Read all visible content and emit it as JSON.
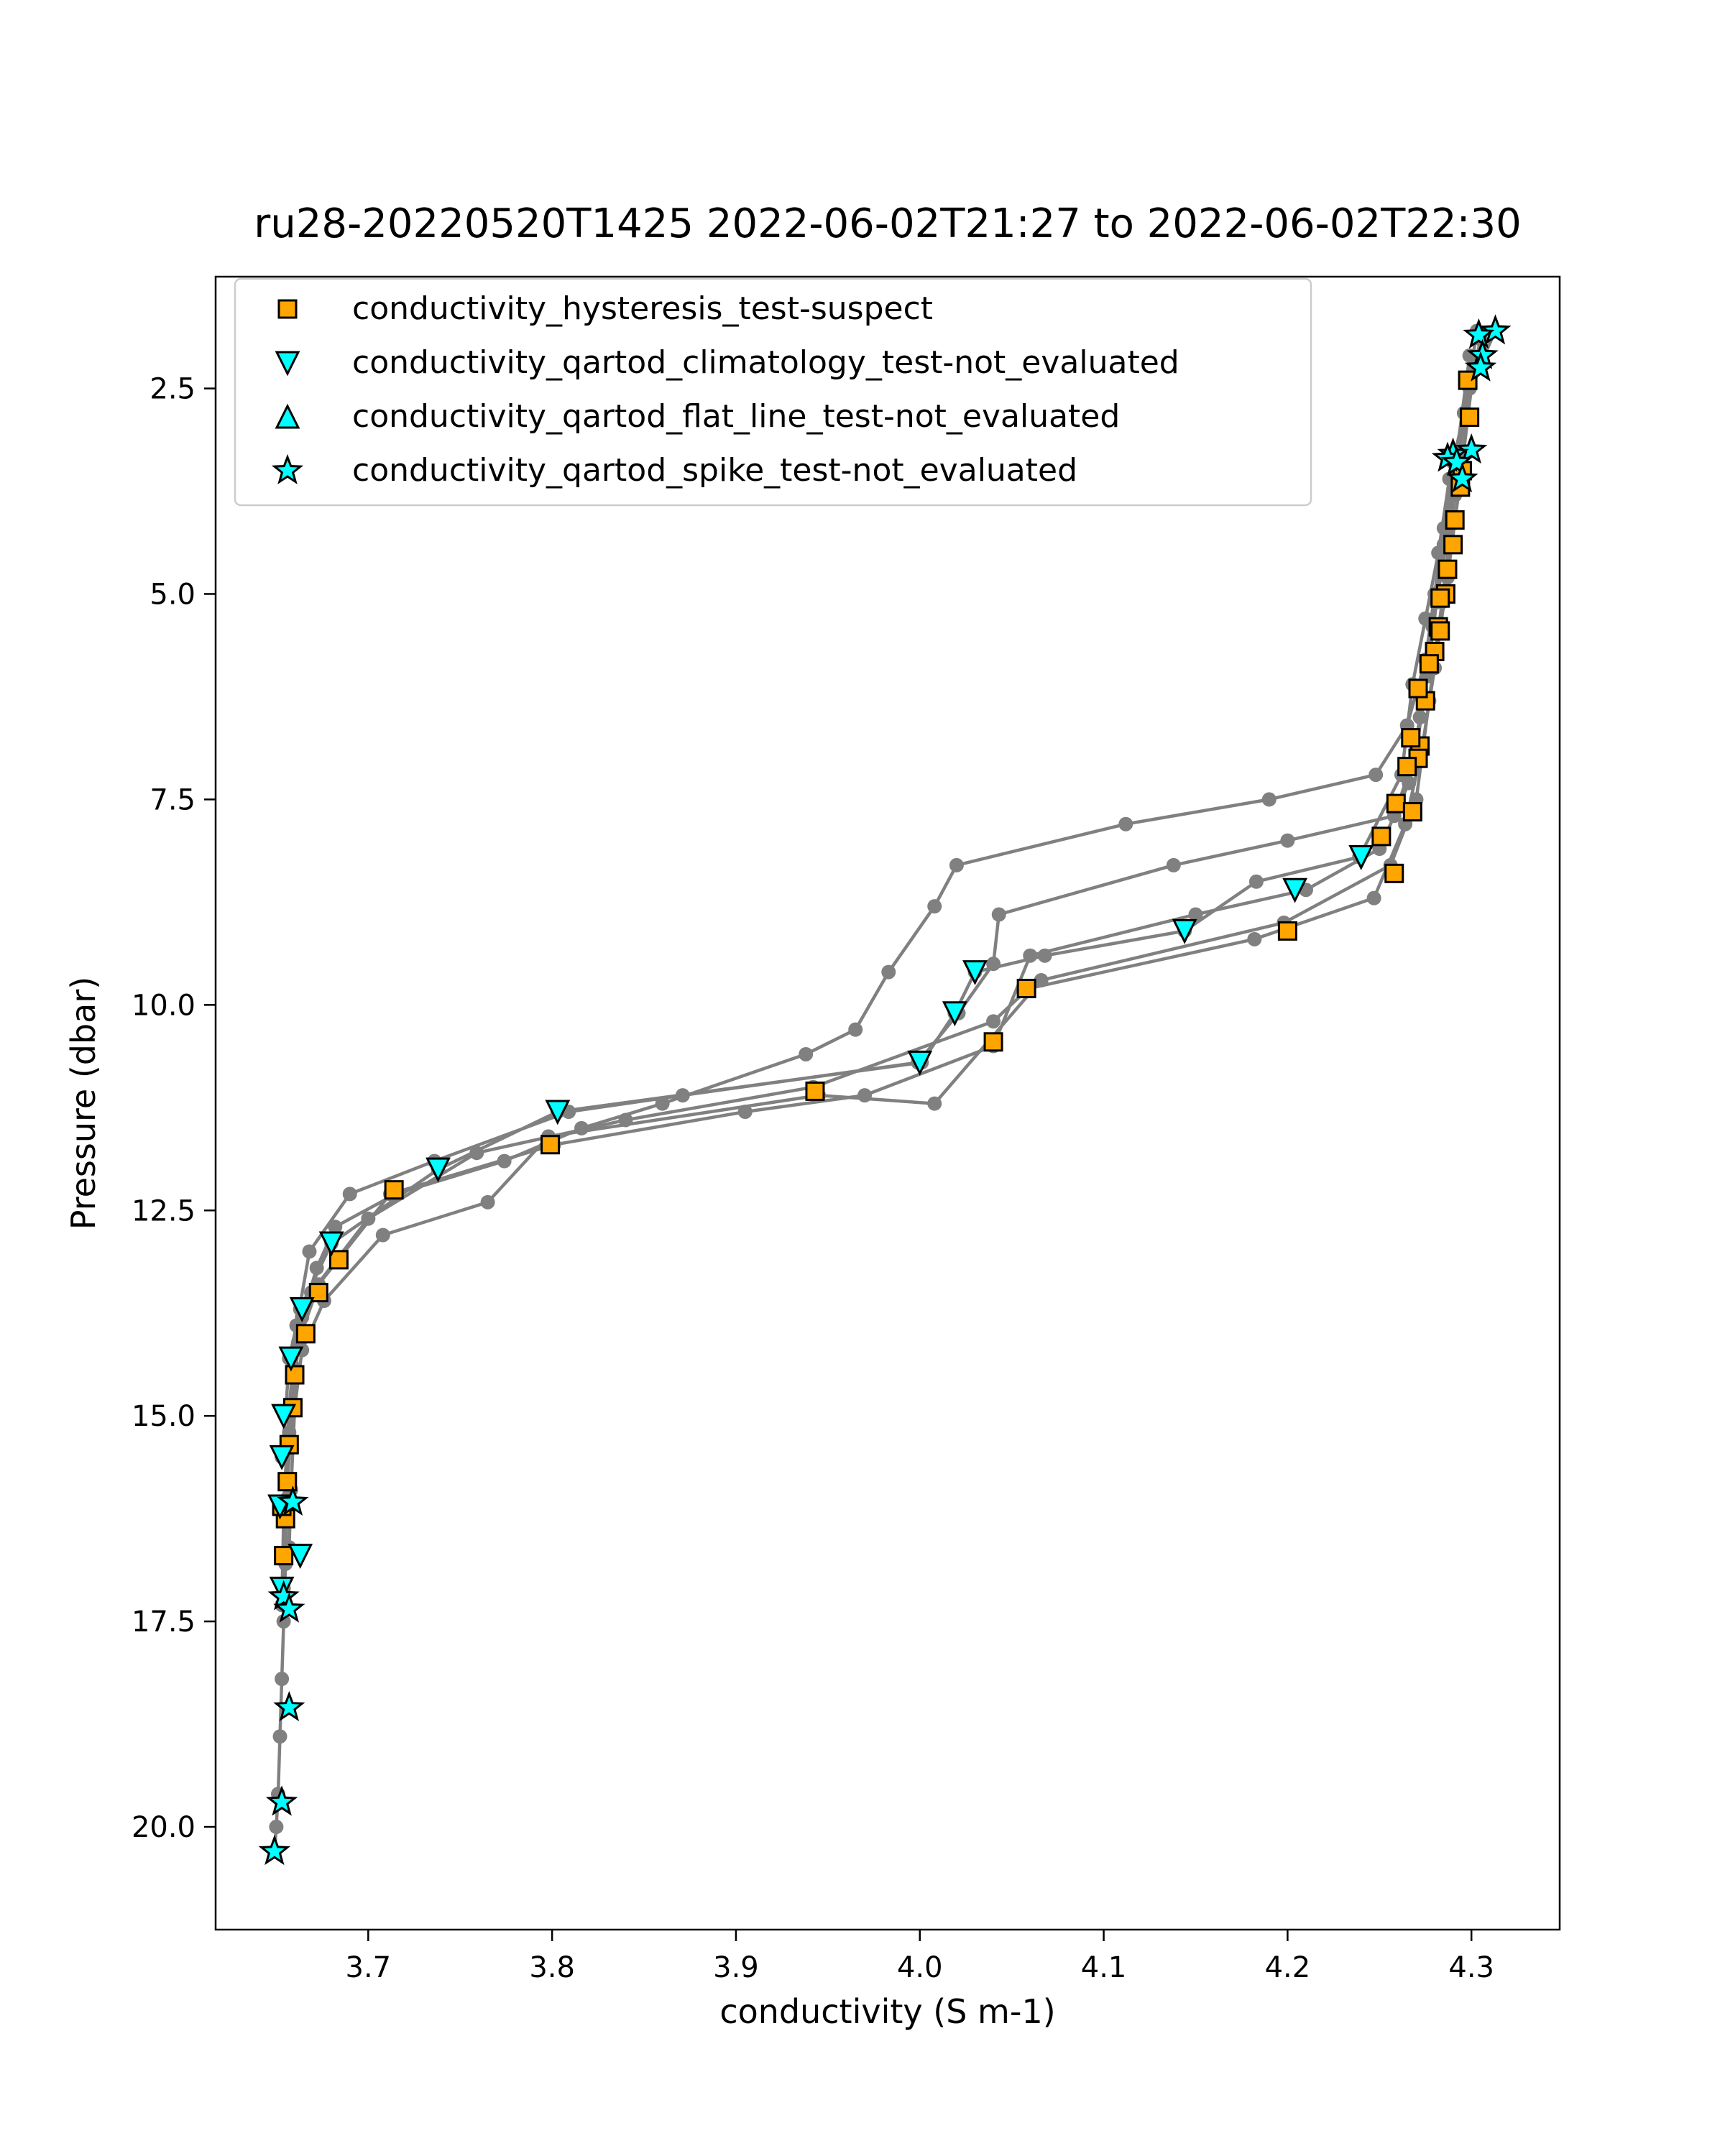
{
  "chart_data": {
    "type": "scatter",
    "title": "ru28-20220520T1425 2022-06-02T21:27 to 2022-06-02T22:30",
    "xlabel": "conductivity (S m-1)",
    "ylabel": "Pressure (dbar)",
    "xlim": [
      3.617,
      4.348
    ],
    "ylim": [
      21.25,
      1.14
    ],
    "y_inverted": true,
    "grid": false,
    "legend_position": "upper-left",
    "xticks": [
      {
        "value": 3.7,
        "label": "3.7"
      },
      {
        "value": 3.8,
        "label": "3.8"
      },
      {
        "value": 3.9,
        "label": "3.9"
      },
      {
        "value": 4.0,
        "label": "4.0"
      },
      {
        "value": 4.1,
        "label": "4.1"
      },
      {
        "value": 4.2,
        "label": "4.2"
      },
      {
        "value": 4.3,
        "label": "4.3"
      }
    ],
    "yticks": [
      {
        "value": 2.5,
        "label": "2.5"
      },
      {
        "value": 5.0,
        "label": "5.0"
      },
      {
        "value": 7.5,
        "label": "7.5"
      },
      {
        "value": 10.0,
        "label": "10.0"
      },
      {
        "value": 12.5,
        "label": "12.5"
      },
      {
        "value": 15.0,
        "label": "15.0"
      },
      {
        "value": 17.5,
        "label": "17.5"
      },
      {
        "value": 20.0,
        "label": "20.0"
      }
    ],
    "profiles": [
      {
        "x": [
          4.313,
          4.305,
          4.296,
          4.29,
          4.285,
          4.28,
          4.275,
          4.265,
          4.248,
          4.19,
          4.112,
          4.02,
          4.008,
          3.983,
          3.965,
          3.938,
          3.86,
          3.816,
          3.774,
          3.715,
          3.682,
          3.672,
          3.664,
          3.66,
          3.657,
          3.656,
          3.655,
          3.654,
          3.653,
          3.652,
          3.651,
          3.65,
          3.649
        ],
        "y": [
          1.8,
          2.2,
          2.8,
          3.4,
          4.2,
          5.0,
          5.8,
          6.6,
          7.2,
          7.5,
          7.8,
          8.3,
          8.8,
          9.6,
          10.3,
          10.6,
          11.2,
          11.5,
          11.9,
          12.3,
          12.7,
          13.2,
          13.8,
          14.5,
          15.2,
          16.0,
          16.8,
          17.5,
          18.2,
          18.9,
          19.6,
          20.0,
          20.3
        ]
      },
      {
        "x": [
          4.305,
          4.299,
          4.293,
          4.287,
          4.281,
          4.276,
          4.27,
          4.258,
          4.2,
          4.138,
          4.043,
          4.04,
          4.021,
          3.999,
          3.871,
          3.809,
          3.736,
          3.69,
          3.668,
          3.661,
          3.657,
          3.654
        ],
        "y": [
          1.9,
          2.5,
          3.4,
          4.3,
          5.1,
          6.0,
          6.9,
          7.7,
          8.0,
          8.3,
          8.9,
          9.5,
          10.1,
          10.7,
          11.1,
          11.3,
          11.9,
          12.3,
          13.0,
          13.9,
          14.9,
          16.1
        ]
      },
      {
        "x": [
          4.303,
          4.296,
          4.288,
          4.282,
          4.275,
          4.268,
          4.262,
          4.239,
          4.183,
          4.144,
          4.068,
          4.03,
          4.019,
          4.001,
          3.803,
          3.738,
          3.68,
          3.663,
          3.657,
          3.655,
          3.653
        ],
        "y": [
          1.8,
          2.8,
          3.6,
          4.5,
          5.3,
          6.1,
          7.2,
          8.2,
          8.5,
          9.1,
          9.4,
          9.6,
          10.1,
          10.7,
          11.3,
          12.0,
          12.9,
          13.7,
          14.3,
          15.0,
          15.5
        ]
      },
      {
        "x": [
          4.299,
          4.292,
          4.285,
          4.279,
          4.272,
          4.266,
          4.25,
          4.21,
          4.15,
          4.06,
          4.04,
          3.97,
          3.905,
          3.801,
          3.712,
          3.673,
          3.662,
          3.659,
          3.656,
          3.655,
          3.654
        ],
        "y": [
          2.1,
          3.3,
          4.4,
          5.4,
          6.5,
          7.3,
          8.1,
          8.6,
          8.9,
          9.4,
          10.5,
          11.1,
          11.3,
          11.7,
          12.3,
          13.4,
          14.1,
          14.9,
          15.8,
          16.7,
          17.1
        ]
      },
      {
        "x": [
          4.301,
          4.294,
          4.287,
          4.28,
          4.273,
          4.264,
          4.247,
          4.182,
          4.059,
          4.04,
          3.942,
          3.84,
          3.759,
          3.7,
          3.669,
          3.659,
          3.656,
          3.654,
          3.653
        ],
        "y": [
          2.3,
          3.6,
          4.8,
          5.9,
          6.9,
          7.8,
          8.7,
          9.2,
          9.8,
          10.2,
          11.0,
          11.4,
          11.8,
          12.6,
          13.5,
          14.4,
          15.3,
          16.2,
          17.3
        ]
      },
      {
        "x": [
          4.298,
          4.291,
          4.284,
          4.277,
          4.27,
          4.256,
          4.198,
          4.066,
          4.008,
          3.945,
          3.798,
          3.765,
          3.708,
          3.676,
          3.664,
          3.66,
          3.658,
          3.657
        ],
        "y": [
          2.4,
          3.8,
          5.1,
          6.3,
          7.5,
          8.3,
          9.0,
          9.7,
          11.2,
          11.1,
          11.6,
          12.4,
          12.8,
          13.6,
          14.2,
          14.9,
          15.9,
          16.6
        ]
      }
    ],
    "series": [
      {
        "name": "conductivity_hysteresis_test-suspect",
        "marker": "square",
        "color": "#ffa500",
        "x": [
          4.298,
          4.299,
          4.295,
          4.294,
          4.291,
          4.29,
          4.287,
          4.286,
          4.283,
          4.282,
          4.28,
          4.283,
          4.277,
          4.275,
          4.271,
          4.272,
          4.267,
          4.271,
          4.265,
          4.259,
          4.268,
          4.251,
          4.258,
          4.2,
          4.058,
          4.04,
          3.943,
          3.799,
          3.714,
          3.684,
          3.673,
          3.666,
          3.66,
          3.659,
          3.657,
          3.656,
          3.655,
          3.654,
          3.653
        ],
        "y": [
          2.4,
          2.85,
          3.5,
          3.7,
          4.1,
          4.4,
          4.7,
          5.0,
          5.05,
          5.4,
          5.7,
          5.45,
          5.85,
          6.3,
          6.15,
          6.85,
          6.75,
          7.0,
          7.1,
          7.55,
          7.65,
          7.95,
          8.4,
          9.1,
          9.8,
          10.45,
          11.05,
          11.7,
          12.25,
          13.1,
          13.5,
          14.0,
          14.5,
          14.9,
          15.35,
          15.8,
          16.25,
          16.7,
          16.1
        ]
      },
      {
        "name": "conductivity_qartod_climatology_test-not_evaluated",
        "marker": "triangle_down",
        "color": "#00ffff",
        "x": [
          4.24,
          4.204,
          4.144,
          4.03,
          4.019,
          4.0,
          3.803,
          3.738,
          3.68,
          3.664,
          3.658,
          3.654,
          3.653,
          3.652,
          3.663,
          3.653
        ],
        "y": [
          8.2,
          8.6,
          9.1,
          9.6,
          10.1,
          10.7,
          11.3,
          12.0,
          12.9,
          13.7,
          14.3,
          15.0,
          15.5,
          16.1,
          16.7,
          17.1
        ]
      },
      {
        "name": "conductivity_qartod_flat_line_test-not_evaluated",
        "marker": "triangle_up",
        "color": "#00ffff",
        "x": [],
        "y": []
      },
      {
        "name": "conductivity_qartod_spike_test-not_evaluated",
        "marker": "star",
        "color": "#00ffff",
        "x": [
          4.313,
          4.304,
          4.306,
          4.305,
          4.3,
          4.29,
          4.287,
          4.292,
          4.295,
          3.659,
          3.654,
          3.657,
          3.657,
          3.653,
          3.649
        ],
        "y": [
          1.8,
          1.85,
          2.1,
          2.25,
          3.25,
          3.3,
          3.35,
          3.4,
          3.6,
          16.05,
          17.2,
          17.35,
          18.55,
          19.7,
          20.3
        ]
      }
    ]
  }
}
